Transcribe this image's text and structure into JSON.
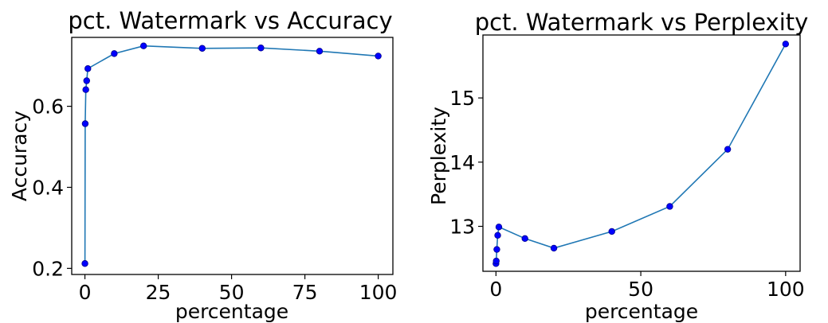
{
  "colors": {
    "line": "#1f77b4",
    "marker": "#0000ff",
    "marker_edge": "#00008b"
  },
  "chart_data": [
    {
      "type": "line",
      "title": "pct. Watermark vs Accuracy",
      "xlabel": "percentage",
      "ylabel": "Accuracy",
      "xlim": [
        -4.5,
        105
      ],
      "ylim": [
        0.185,
        0.77
      ],
      "xticks": [
        0,
        25,
        50,
        75,
        100
      ],
      "xtick_labels": [
        "0",
        "25",
        "50",
        "75",
        "100"
      ],
      "yticks": [
        0.2,
        0.4,
        0.6
      ],
      "ytick_labels": [
        "0.2",
        "0.4",
        "0.6"
      ],
      "grid": false,
      "series": [
        {
          "x": [
            0,
            0.1,
            0.3,
            0.6,
            1,
            10,
            20,
            40,
            60,
            80,
            100
          ],
          "y": [
            0.212,
            0.557,
            0.641,
            0.663,
            0.693,
            0.73,
            0.749,
            0.743,
            0.744,
            0.736,
            0.724
          ]
        }
      ]
    },
    {
      "type": "line",
      "title": "pct. Watermark vs Perplexity",
      "xlabel": "percentage",
      "ylabel": "Perplexity",
      "xlim": [
        -4.5,
        105
      ],
      "ylim": [
        12.3,
        15.98
      ],
      "xticks": [
        0,
        50,
        100
      ],
      "xtick_labels": [
        "0",
        "50",
        "100"
      ],
      "yticks": [
        13,
        14,
        15
      ],
      "ytick_labels": [
        "13",
        "14",
        "15"
      ],
      "grid": false,
      "series": [
        {
          "x": [
            0,
            0.1,
            0.3,
            0.6,
            1,
            10,
            20,
            40,
            60,
            80,
            100
          ],
          "y": [
            12.42,
            12.46,
            12.64,
            12.86,
            12.99,
            12.81,
            12.66,
            12.92,
            13.31,
            14.2,
            15.84
          ]
        }
      ]
    }
  ]
}
